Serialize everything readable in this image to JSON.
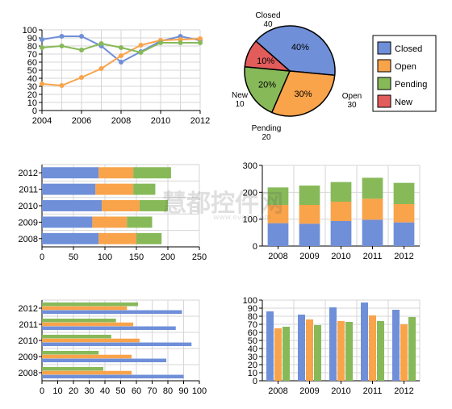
{
  "colors": {
    "closed": "#6f8fd8",
    "open": "#f9a34a",
    "pending": "#87b959",
    "new": "#e25c5c",
    "grid": "#d6d6d6",
    "axis": "#000000"
  },
  "watermark": {
    "text": "慧都控件网",
    "sub": "www.evget.com"
  },
  "chart_data": [
    {
      "id": "line",
      "type": "line",
      "x": [
        2004,
        2005,
        2006,
        2007,
        2008,
        2009,
        2010,
        2011,
        2012
      ],
      "xticks": [
        "2004",
        "2006",
        "2008",
        "2010",
        "2012"
      ],
      "ylim": [
        0,
        100
      ],
      "yticks": [
        "0",
        "10",
        "20",
        "30",
        "40",
        "50",
        "60",
        "70",
        "80",
        "90",
        "100"
      ],
      "series": [
        {
          "key": "closed",
          "values": [
            88,
            92,
            92,
            80,
            60,
            73,
            86,
            92,
            87
          ]
        },
        {
          "key": "open",
          "values": [
            33,
            31,
            41,
            52,
            68,
            81,
            87,
            88,
            89
          ]
        },
        {
          "key": "pending",
          "values": [
            78,
            80,
            75,
            83,
            78,
            72,
            84,
            84,
            84
          ]
        }
      ]
    },
    {
      "id": "pie",
      "type": "pie",
      "slices": [
        {
          "key": "closed",
          "value": 40,
          "pct": "40%",
          "label": "Closed",
          "num": "40"
        },
        {
          "key": "open",
          "value": 30,
          "pct": "30%",
          "label": "Open",
          "num": "30"
        },
        {
          "key": "pending",
          "value": 20,
          "pct": "20%",
          "label": "Pending",
          "num": "20"
        },
        {
          "key": "new",
          "value": 10,
          "pct": "10%",
          "label": "New",
          "num": "10"
        }
      ],
      "legend": [
        {
          "key": "closed",
          "label": "Closed"
        },
        {
          "key": "open",
          "label": "Open"
        },
        {
          "key": "pending",
          "label": "Pending"
        },
        {
          "key": "new",
          "label": "New"
        }
      ],
      "legend_position": "right"
    },
    {
      "id": "hstack",
      "type": "bar",
      "orientation": "horizontal",
      "stacked": true,
      "categories": [
        "2008",
        "2009",
        "2010",
        "2011",
        "2012"
      ],
      "xlim": [
        0,
        250
      ],
      "xticks": [
        "0",
        "50",
        "100",
        "150",
        "200",
        "250"
      ],
      "series": [
        {
          "key": "closed",
          "values": [
            90,
            80,
            95,
            85,
            90
          ]
        },
        {
          "key": "open",
          "values": [
            60,
            55,
            60,
            60,
            55
          ]
        },
        {
          "key": "pending",
          "values": [
            40,
            40,
            45,
            35,
            60
          ]
        }
      ]
    },
    {
      "id": "vstack",
      "type": "bar",
      "orientation": "vertical",
      "stacked": true,
      "categories": [
        "2008",
        "2009",
        "2010",
        "2011",
        "2012"
      ],
      "ylim": [
        0,
        300
      ],
      "yticks": [
        "0",
        "100",
        "200",
        "300"
      ],
      "series": [
        {
          "key": "closed",
          "values": [
            85,
            83,
            93,
            98,
            88
          ]
        },
        {
          "key": "open",
          "values": [
            68,
            70,
            72,
            78,
            68
          ]
        },
        {
          "key": "pending",
          "values": [
            65,
            72,
            73,
            78,
            79
          ]
        }
      ]
    },
    {
      "id": "hgroup",
      "type": "bar",
      "orientation": "horizontal",
      "stacked": false,
      "categories": [
        "2008",
        "2009",
        "2010",
        "2011",
        "2012"
      ],
      "xlim": [
        0,
        100
      ],
      "xticks": [
        "0",
        "10",
        "20",
        "30",
        "40",
        "50",
        "60",
        "70",
        "80",
        "90",
        "100"
      ],
      "series": [
        {
          "key": "closed",
          "values": [
            90,
            79,
            95,
            85,
            89
          ]
        },
        {
          "key": "open",
          "values": [
            57,
            57,
            62,
            58,
            54
          ]
        },
        {
          "key": "pending",
          "values": [
            39,
            36,
            44,
            47,
            61
          ]
        }
      ]
    },
    {
      "id": "vgroup",
      "type": "bar",
      "orientation": "vertical",
      "stacked": false,
      "categories": [
        "2008",
        "2009",
        "2010",
        "2011",
        "2012"
      ],
      "ylim": [
        0,
        100
      ],
      "yticks": [
        "0",
        "10",
        "20",
        "30",
        "40",
        "50",
        "60",
        "70",
        "80",
        "90",
        "100"
      ],
      "series": [
        {
          "key": "closed",
          "values": [
            86,
            82,
            91,
            97,
            88
          ]
        },
        {
          "key": "open",
          "values": [
            65,
            76,
            74,
            81,
            70
          ]
        },
        {
          "key": "pending",
          "values": [
            67,
            69,
            73,
            74,
            79
          ]
        }
      ]
    }
  ]
}
